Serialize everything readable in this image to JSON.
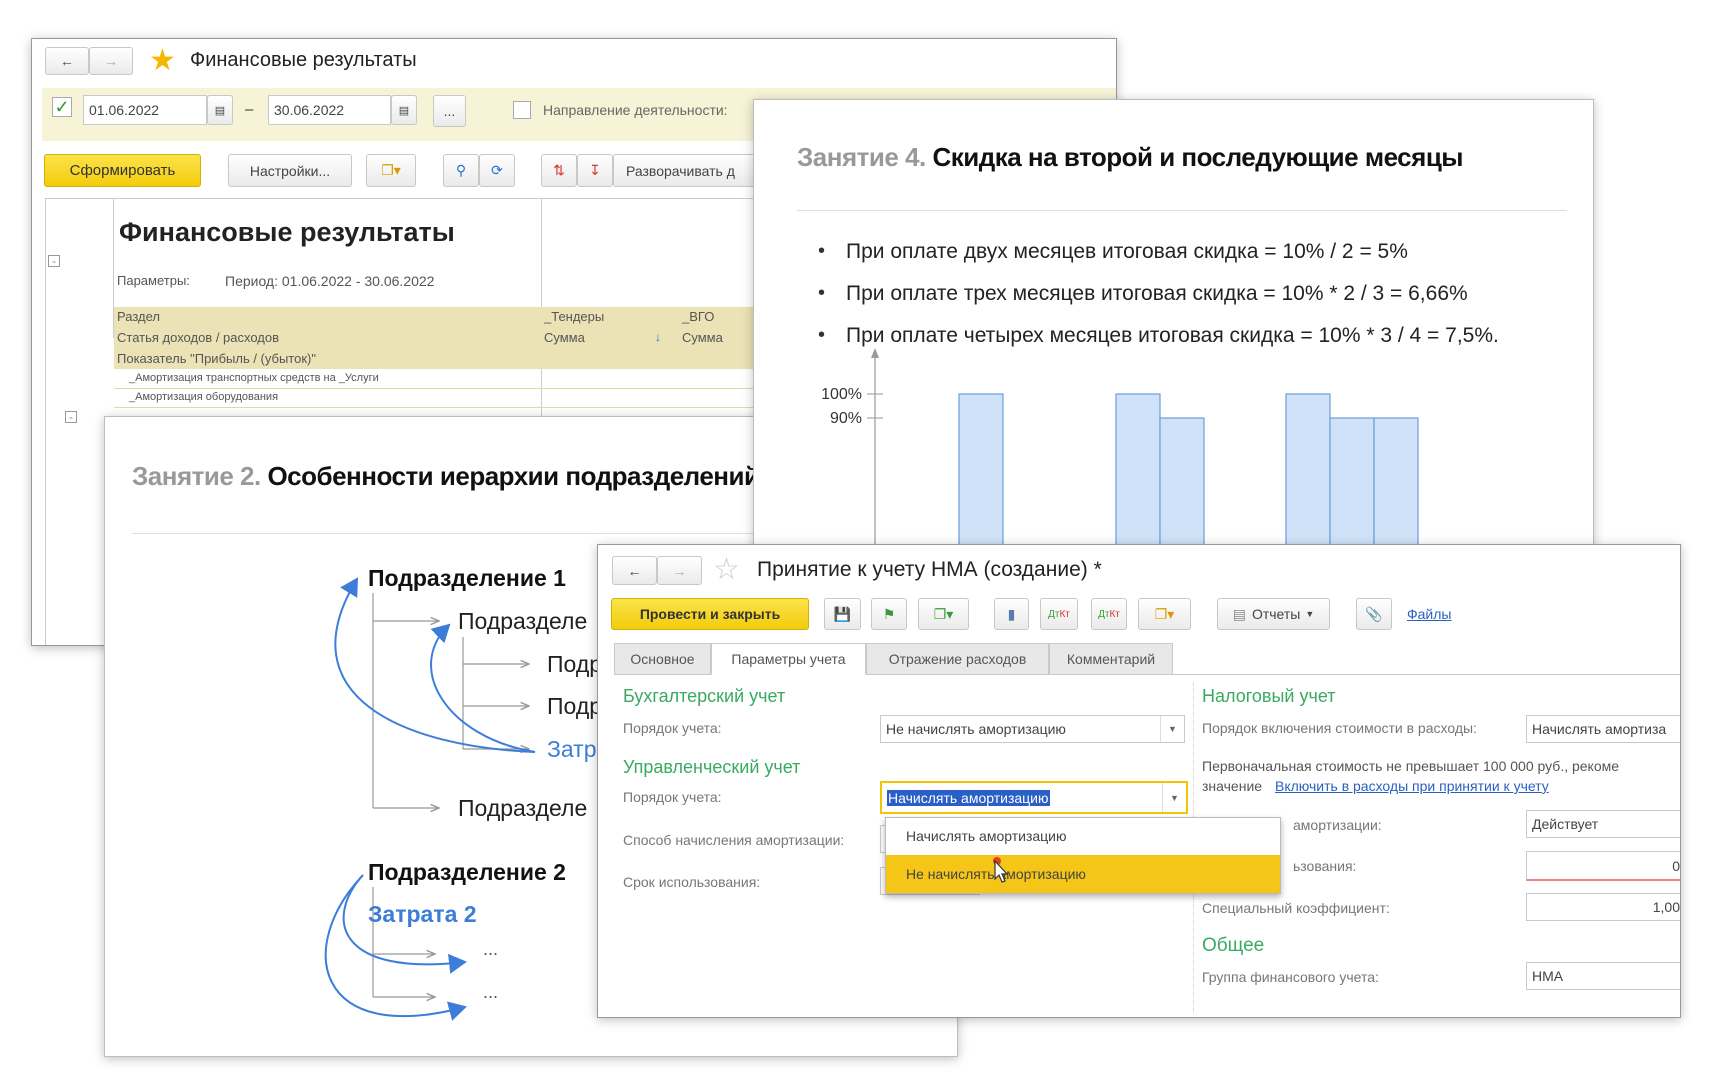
{
  "report_window": {
    "title": "Финансовые результаты",
    "date_from": "01.06.2022",
    "date_to": "30.06.2022",
    "dash": "–",
    "more_button": "...",
    "direction_label": "Направление деятельности:",
    "generate_button": "Сформировать",
    "settings_button": "Настройки...",
    "expand_button": "Разворачивать д",
    "report_title": "Финансовые результаты",
    "params_label": "Параметры:",
    "period_label": "Период: 01.06.2022 - 30.06.2022",
    "header_rows": [
      "Раздел",
      "Статья доходов / расходов",
      "Показатель \"Прибыль / (убыток)\""
    ],
    "col1_header": "_Тендеры",
    "col1_sub": "Сумма",
    "col2_header": "_ВГО",
    "col2_sub": "Сумма",
    "rows": [
      "_Амортизация транспортных средств на _Услуги",
      "_Амортизация оборудования"
    ]
  },
  "slide4": {
    "lesson": "Занятие 4.",
    "title": "Скидка на второй и последующие месяцы",
    "bullets": [
      "При оплате двух месяцев итоговая скидка = 10% / 2 = 5%",
      "При оплате трех месяцев итоговая скидка = 10% * 2 / 3 =  6,66%",
      "При оплате четырех месяцев итоговая скидка = 10% * 3 / 4 =  7,5%."
    ]
  },
  "chart_data": {
    "type": "bar",
    "groups": [
      [
        100
      ],
      [
        100,
        90
      ],
      [
        100,
        90,
        90
      ]
    ],
    "yticks": [
      "100%",
      "90%"
    ],
    "ytick_values": [
      100,
      90
    ],
    "ylim": [
      0,
      100
    ],
    "bar_color": "#cfe2f7",
    "bar_stroke": "#6a9fd8"
  },
  "slide2": {
    "lesson": "Занятие 2.",
    "title": "Особенности иерархии подразделений",
    "nodes": {
      "dept1": "Подразделение 1",
      "sub1": "Подразделе",
      "sub1a": "Подр",
      "sub1b": "Подр",
      "cost1": "Затр",
      "sub2": "Подразделе",
      "dept2": "Подразделение 2",
      "cost2": "Затрата 2",
      "dots1": "...",
      "dots2": "..."
    },
    "accent": "#3b7dd8"
  },
  "nma_window": {
    "title": "Принятие к учету НМА (создание) *",
    "post_close_button": "Провести и закрыть",
    "reports_button": "Отчеты",
    "files_link": "Файлы",
    "tabs": [
      "Основное",
      "Параметры учета",
      "Отражение расходов",
      "Комментарий"
    ],
    "active_tab": "Параметры учета",
    "accounting": {
      "heading": "Бухгалтерский учет",
      "order_label": "Порядок учета:",
      "order_value": "Не начислять амортизацию"
    },
    "management": {
      "heading": "Управленческий учет",
      "order_label": "Порядок учета:",
      "order_value": "Начислять амортизацию",
      "method_label": "Способ начисления амортизации:",
      "term_label": "Срок использования:"
    },
    "dropdown_options": [
      "Начислять амортизацию",
      "Не начислять амортизацию"
    ],
    "dropdown_highlighted": "Не начислять амортизацию",
    "tax": {
      "heading": "Налоговый учет",
      "inclusion_label": "Порядок включения стоимости в расходы:",
      "inclusion_value": "Начислять амортиза",
      "note": "Первоначальная стоимость не превышает 100 000 руб., рекоме",
      "note2": "значение",
      "note_link": "Включить в расходы при принятии к учету",
      "status_label": "амортизации:",
      "status_value": "Действует",
      "term_label": "ьзования:",
      "term_value": "0",
      "coef_label": "Специальный коэффициент:",
      "coef_value": "1,00"
    },
    "general": {
      "heading": "Общее",
      "group_label": "Группа финансового учета:",
      "group_value": "НМА"
    }
  }
}
